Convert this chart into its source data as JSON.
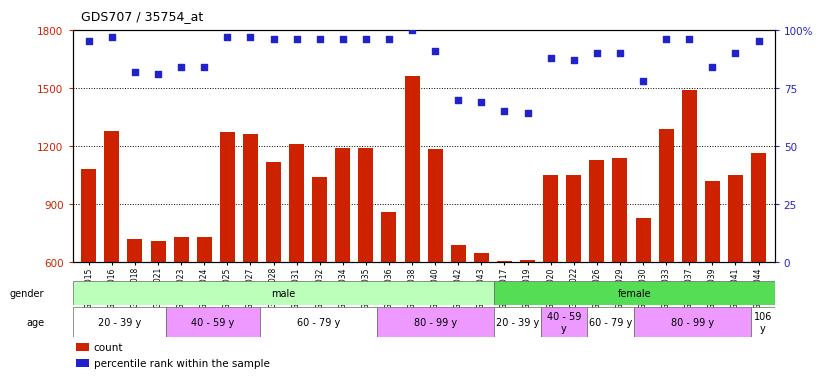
{
  "title": "GDS707 / 35754_at",
  "samples": [
    "GSM27015",
    "GSM27016",
    "GSM27018",
    "GSM27021",
    "GSM27023",
    "GSM27024",
    "GSM27025",
    "GSM27027",
    "GSM27028",
    "GSM27031",
    "GSM27032",
    "GSM27034",
    "GSM27035",
    "GSM27036",
    "GSM27038",
    "GSM27040",
    "GSM27042",
    "GSM27043",
    "GSM27017",
    "GSM27019",
    "GSM27020",
    "GSM27022",
    "GSM27026",
    "GSM27029",
    "GSM27030",
    "GSM27033",
    "GSM27037",
    "GSM27039",
    "GSM27041",
    "GSM27044"
  ],
  "counts": [
    1080,
    1280,
    720,
    710,
    730,
    730,
    1270,
    1260,
    1120,
    1210,
    1040,
    1190,
    1190,
    860,
    1560,
    1185,
    690,
    650,
    605,
    610,
    1050,
    1050,
    1130,
    1140,
    830,
    1290,
    1490,
    1020,
    1050,
    1165
  ],
  "percentiles": [
    95,
    97,
    82,
    81,
    84,
    84,
    97,
    97,
    96,
    96,
    96,
    96,
    96,
    96,
    100,
    91,
    70,
    69,
    65,
    64,
    88,
    87,
    90,
    90,
    78,
    96,
    96,
    84,
    90,
    95
  ],
  "ylim_left": [
    600,
    1800
  ],
  "ylim_right": [
    0,
    100
  ],
  "yticks_left": [
    600,
    900,
    1200,
    1500,
    1800
  ],
  "yticks_right": [
    0,
    25,
    50,
    75,
    100
  ],
  "bar_color": "#cc2200",
  "dot_color": "#2222cc",
  "gender_groups": [
    {
      "label": "male",
      "start": 0,
      "end": 18,
      "color": "#bbffbb"
    },
    {
      "label": "female",
      "start": 18,
      "end": 30,
      "color": "#55dd55"
    }
  ],
  "age_groups": [
    {
      "label": "20 - 39 y",
      "start": 0,
      "end": 4,
      "color": "#ffffff"
    },
    {
      "label": "40 - 59 y",
      "start": 4,
      "end": 8,
      "color": "#ee99ff"
    },
    {
      "label": "60 - 79 y",
      "start": 8,
      "end": 13,
      "color": "#ffffff"
    },
    {
      "label": "80 - 99 y",
      "start": 13,
      "end": 18,
      "color": "#ee99ff"
    },
    {
      "label": "20 - 39 y",
      "start": 18,
      "end": 20,
      "color": "#ffffff"
    },
    {
      "label": "40 - 59\ny",
      "start": 20,
      "end": 22,
      "color": "#ee99ff"
    },
    {
      "label": "60 - 79 y",
      "start": 22,
      "end": 24,
      "color": "#ffffff"
    },
    {
      "label": "80 - 99 y",
      "start": 24,
      "end": 29,
      "color": "#ee99ff"
    },
    {
      "label": "106\ny",
      "start": 29,
      "end": 30,
      "color": "#ffffff"
    }
  ],
  "legend_items": [
    {
      "label": "count",
      "color": "#cc2200"
    },
    {
      "label": "percentile rank within the sample",
      "color": "#2222cc"
    }
  ],
  "fig_width": 8.26,
  "fig_height": 3.75,
  "fig_dpi": 100
}
